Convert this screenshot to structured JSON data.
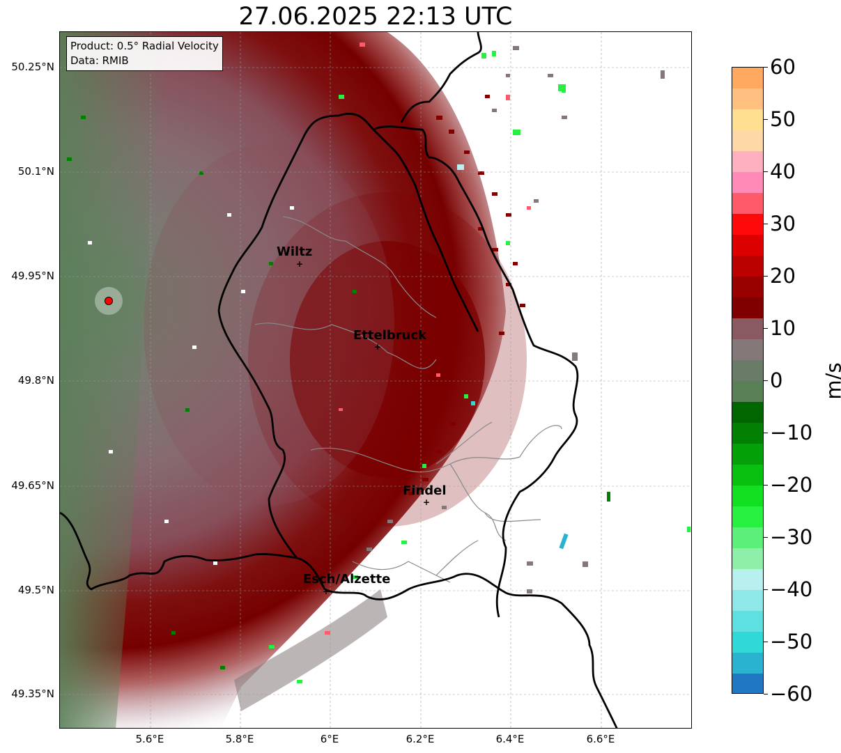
{
  "title": "27.06.2025 22:13 UTC",
  "info": {
    "product": "Product: 0.5° Radial Velocity",
    "data_source": "Data: RMIB"
  },
  "axes": {
    "lat_labels": [
      "50.25°N",
      "50.1°N",
      "49.95°N",
      "49.8°N",
      "49.65°N",
      "49.5°N",
      "49.35°N"
    ],
    "lon_labels": [
      "5.6°E",
      "5.8°E",
      "6°E",
      "6.2°E",
      "6.4°E",
      "6.6°E"
    ]
  },
  "cities": [
    {
      "name": "Wiltz"
    },
    {
      "name": "Ettelbruck"
    },
    {
      "name": "Findel"
    },
    {
      "name": "Esch/Alzette"
    }
  ],
  "colorbar": {
    "unit": "m/s",
    "tick_labels": [
      "60",
      "50",
      "40",
      "30",
      "20",
      "10",
      "0",
      "−10",
      "−20",
      "−30",
      "−40",
      "−50",
      "−60"
    ],
    "range": [
      -60,
      60
    ],
    "colors": [
      "#1f78c1",
      "#2ab3d0",
      "#30d8d8",
      "#5ee0e0",
      "#8ee8e8",
      "#b8f0f0",
      "#8ef0a8",
      "#5cf07a",
      "#28f040",
      "#10e020",
      "#08c010",
      "#04a008",
      "#028004",
      "#006600",
      "#5a8058",
      "#687c68",
      "#857878",
      "#8a5a62",
      "#800000",
      "#990000",
      "#bb0000",
      "#dd0000",
      "#ff0a0a",
      "#ff5a6a",
      "#ff8ab8",
      "#ffb0c0",
      "#ffd8a8",
      "#ffe090",
      "#ffc080",
      "#ffa860"
    ]
  },
  "colors": {
    "velocity_positive_dark": "#800000",
    "velocity_positive_mid": "#8a4a58",
    "velocity_near_zero": "#857878",
    "velocity_negative_gray": "#5f7f60",
    "velocity_negative_green": "#18d020",
    "radar_site": "#ff0000"
  }
}
